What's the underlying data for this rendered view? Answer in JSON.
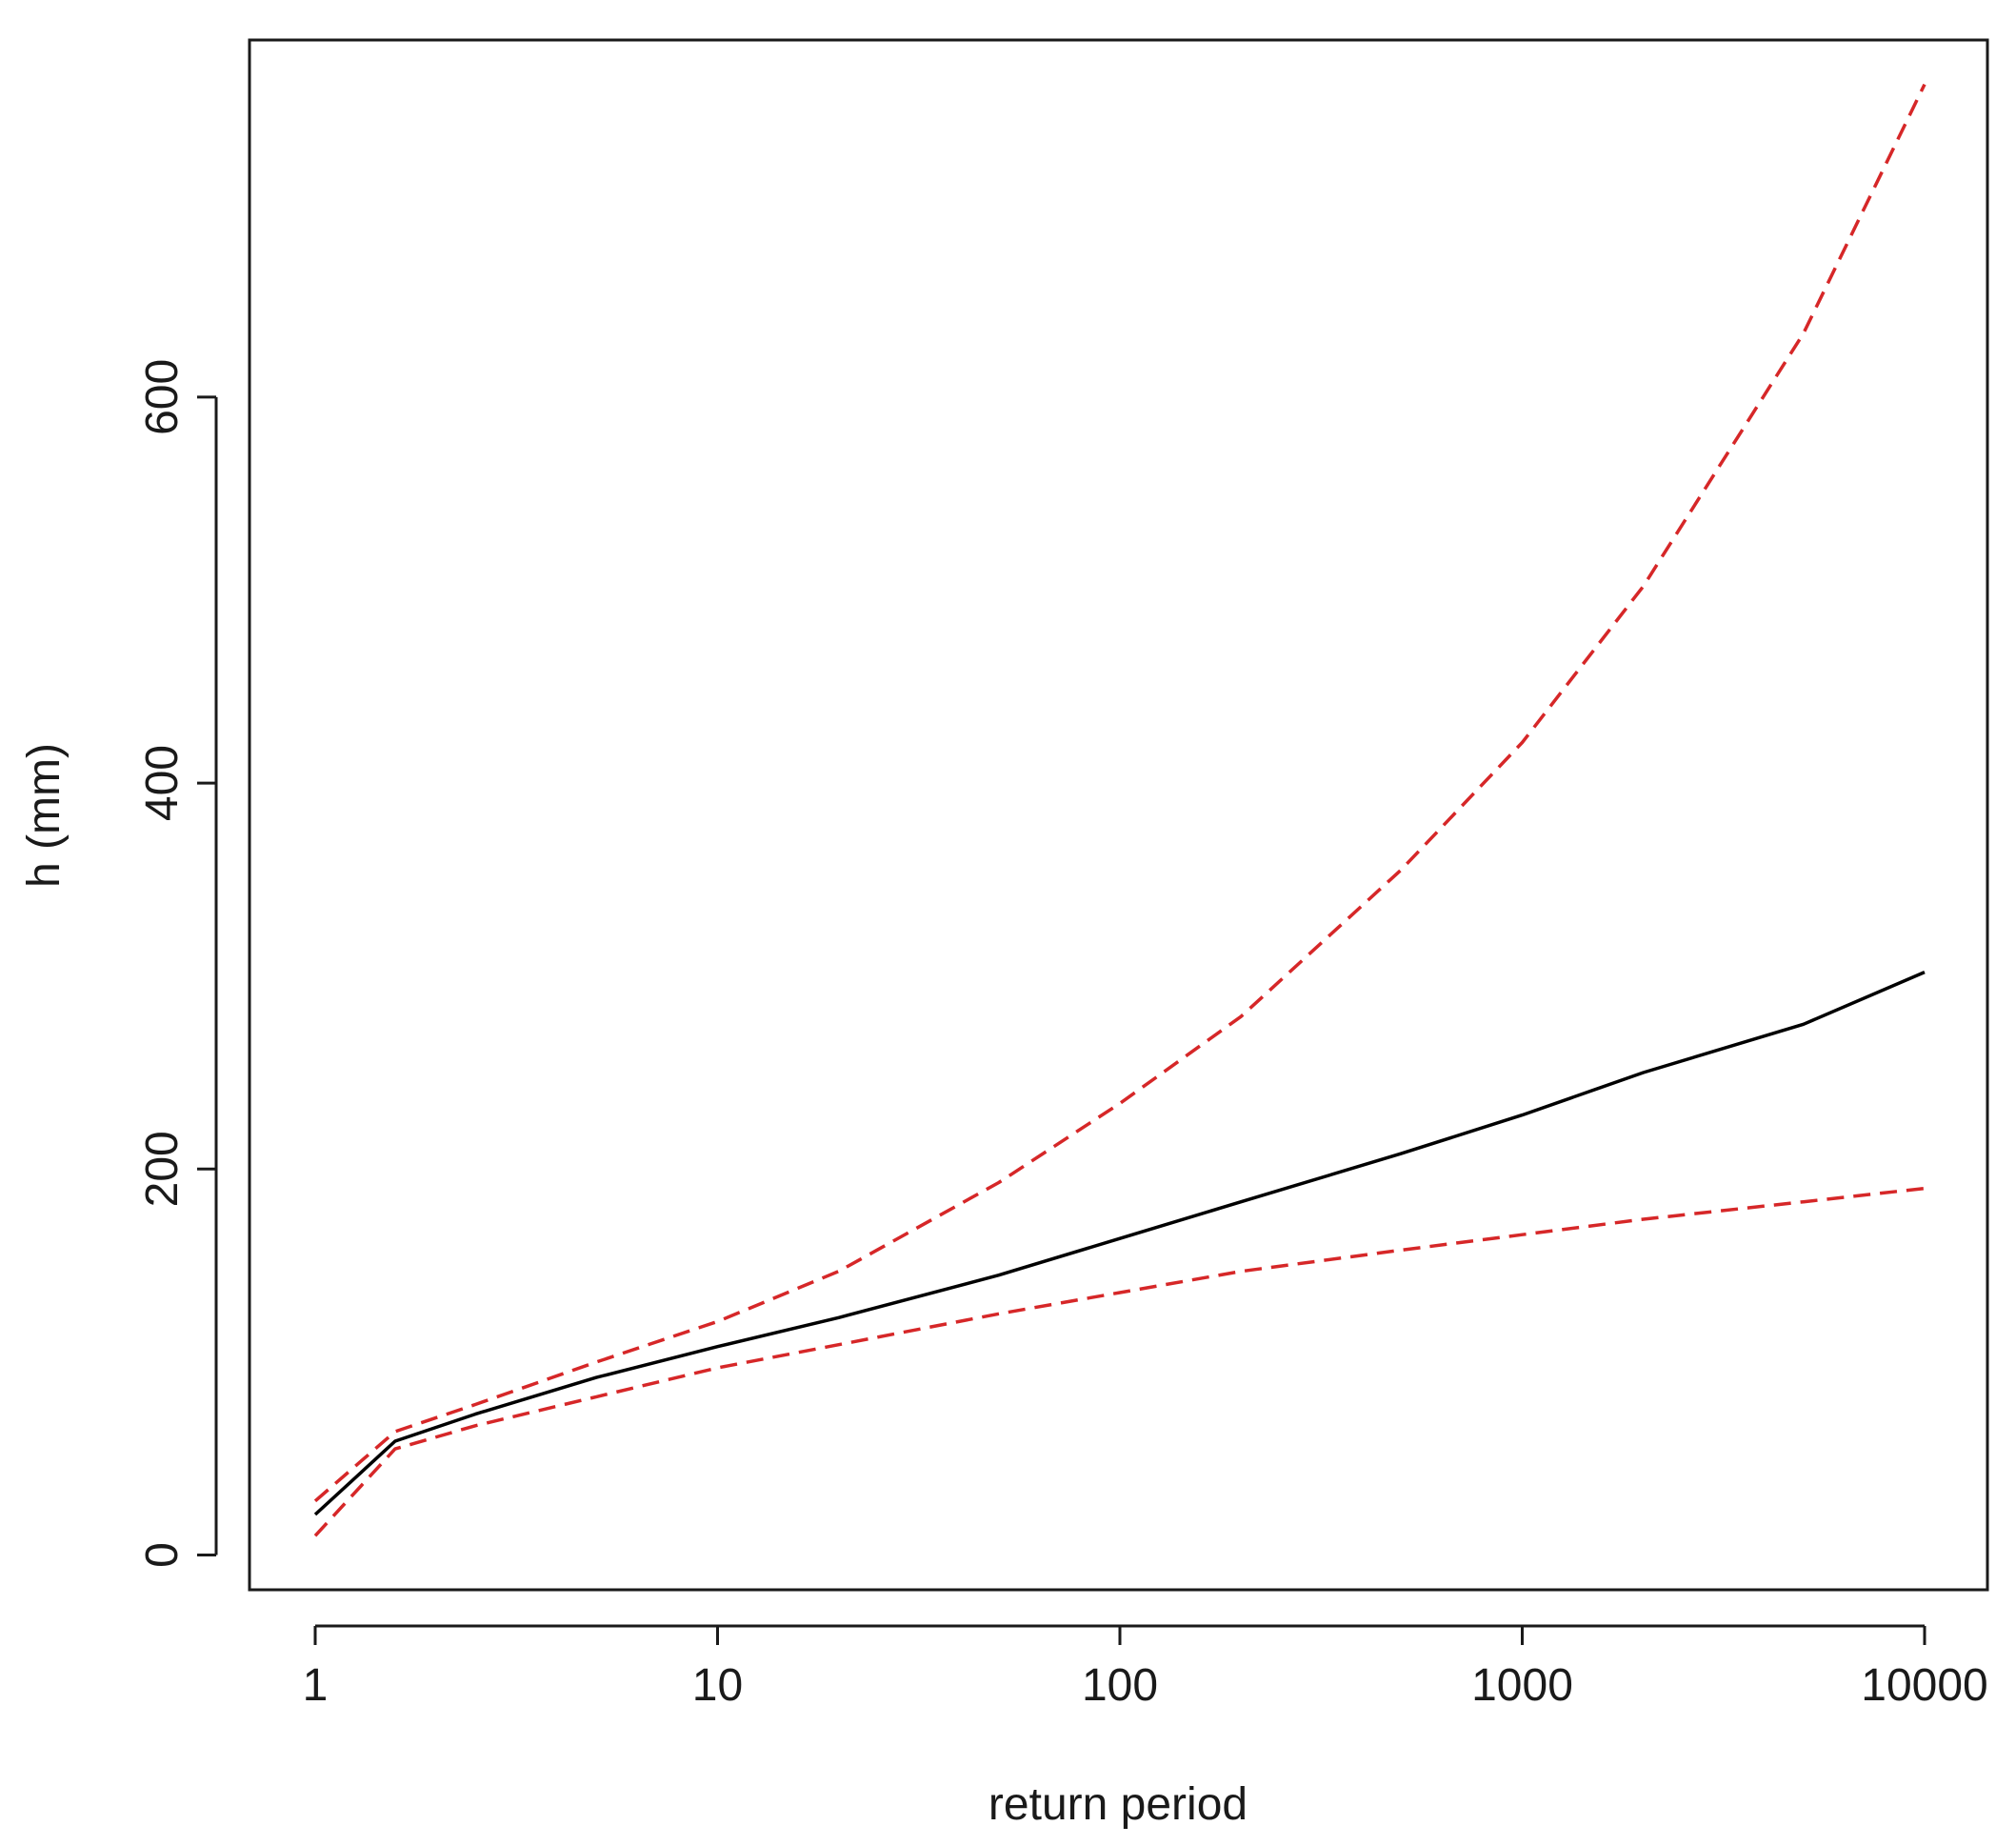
{
  "chart_data": {
    "type": "line",
    "title": "",
    "xlabel": "return period",
    "ylabel": "h (mm)",
    "xscale": "log",
    "xlim": [
      1,
      10000
    ],
    "ylim": [
      -18,
      785
    ],
    "xticks": [
      1,
      10,
      100,
      1000,
      10000
    ],
    "xtick_labels": [
      "1",
      "10",
      "100",
      "1000",
      "10000"
    ],
    "yticks": [
      0,
      200,
      400,
      600
    ],
    "ytick_labels": [
      "0",
      "200",
      "400",
      "600"
    ],
    "grid": false,
    "legend": "none",
    "x": [
      1,
      1.58,
      2.5,
      5,
      10,
      20,
      50,
      100,
      200,
      500,
      1000,
      2000,
      5000,
      10000
    ],
    "series": [
      {
        "color": "#000000",
        "dashed": false,
        "values": [
          21,
          59,
          73,
          92,
          108,
          123,
          145,
          164,
          183,
          208,
          228,
          250,
          275,
          302
        ]
      },
      {
        "color": "#d62728",
        "dashed": true,
        "values": [
          28,
          64,
          78,
          100,
          121,
          147,
          193,
          234,
          279,
          355,
          421,
          502,
          633,
          762
        ]
      },
      {
        "color": "#d62728",
        "dashed": true,
        "values": [
          10,
          55,
          67,
          82,
          97,
          109,
          125,
          136,
          147,
          158,
          166,
          174,
          183,
          190
        ]
      }
    ]
  }
}
